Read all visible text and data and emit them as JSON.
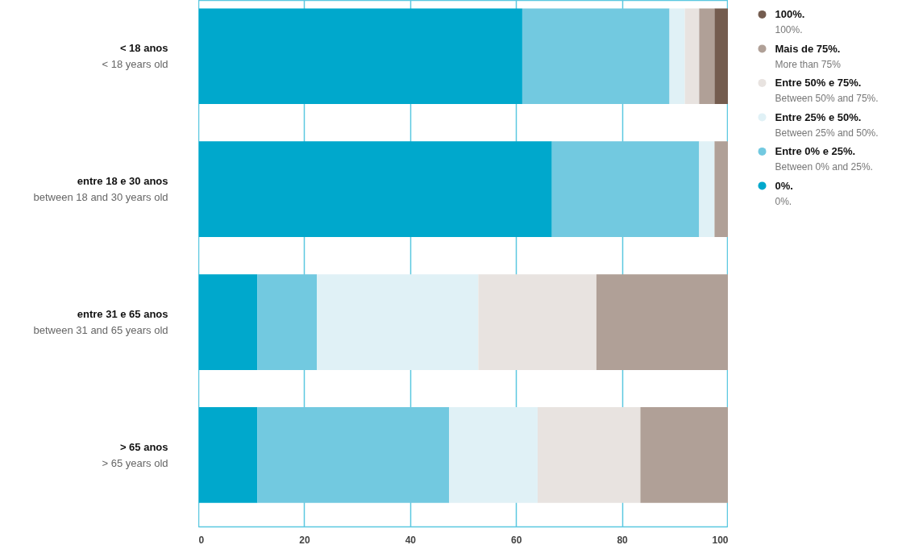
{
  "chart_data": {
    "type": "bar",
    "orientation": "horizontal",
    "stacked": true,
    "categories": [
      "< 18 anos\n< 18 years old",
      "entre 18 e 30 anos\nbetween 18 and 30 years old",
      "entre 31 e 65 anos\nbetween 31 and 65 years old",
      "> 65 anos\n> 65 years old"
    ],
    "series": [
      {
        "name": "0%.\n0%.",
        "color": "#00a8cc",
        "values": [
          61.1,
          66.7,
          11.1,
          11.1
        ]
      },
      {
        "name": "Entre 0% e 25%.\nBetween 0% and 25%.",
        "color": "#72c9e0",
        "values": [
          27.8,
          27.8,
          11.2,
          36.2
        ]
      },
      {
        "name": "Entre 25% e 50%.\nBetween 25% and 50%.",
        "color": "#e0f1f6",
        "values": [
          2.9,
          2.9,
          30.5,
          16.7
        ]
      },
      {
        "name": "Entre 50% e 75%.\nBetween 50% and 75%.",
        "color": "#e8e3e0",
        "values": [
          2.7,
          null,
          22.3,
          19.4
        ]
      },
      {
        "name": "Mais de 75%.\nMore than 75%",
        "color": "#b0a097",
        "values": [
          2.9,
          2.6,
          24.9,
          16.6
        ]
      },
      {
        "name": "100%.\n100%.",
        "color": "#745c4f",
        "values": [
          2.6,
          null,
          null,
          null
        ]
      }
    ],
    "xlim": [
      0,
      100
    ],
    "xticks": [
      0,
      20,
      40,
      60,
      80,
      100
    ],
    "grid": "x",
    "legend": "right"
  }
}
